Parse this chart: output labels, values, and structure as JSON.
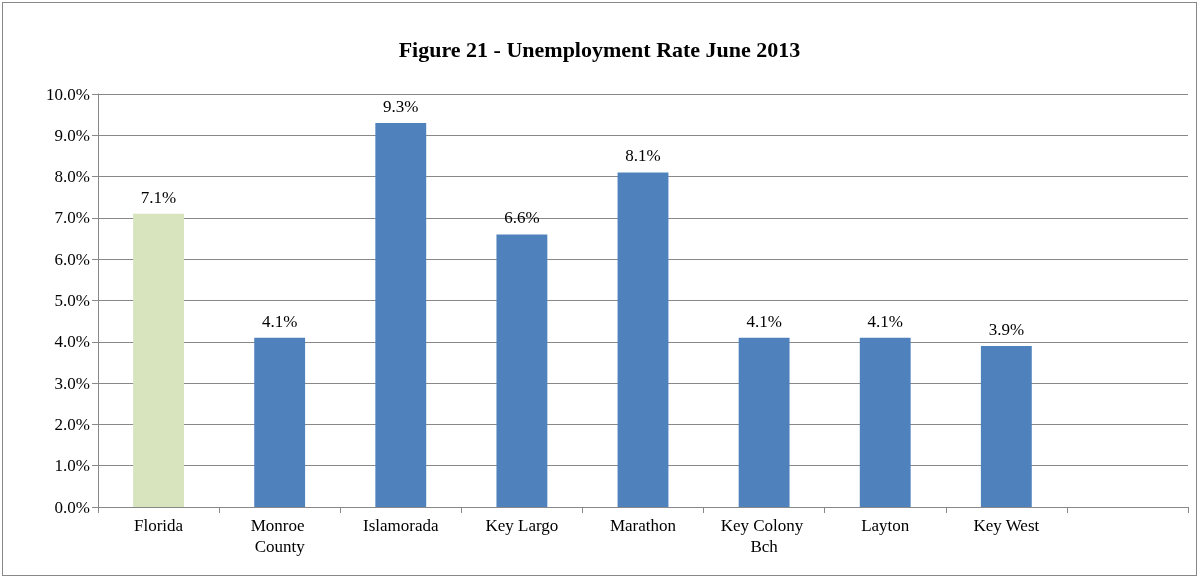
{
  "chart_data": {
    "type": "bar",
    "title": "Figure 21 - Unemployment Rate June 2013",
    "categories": [
      "Florida",
      "Monroe County",
      "Islamorada",
      "Key Largo",
      "Marathon",
      "Key Colony Bch",
      "Layton",
      "Key West",
      null
    ],
    "values": [
      7.1,
      4.1,
      9.3,
      6.6,
      8.1,
      4.1,
      4.1,
      3.9,
      null
    ],
    "colors": [
      "#d7e4bd",
      "#4f81bd",
      "#4f81bd",
      "#4f81bd",
      "#4f81bd",
      "#4f81bd",
      "#4f81bd",
      "#4f81bd",
      "#4f81bd"
    ],
    "value_labels": [
      "7.1%",
      "4.1%",
      "9.3%",
      "6.6%",
      "8.1%",
      "4.1%",
      "4.1%",
      "3.9%",
      null
    ],
    "ylim": [
      0,
      10
    ],
    "yticks": [
      {
        "value": 0,
        "label": "0.0%"
      },
      {
        "value": 1,
        "label": "1.0%"
      },
      {
        "value": 2,
        "label": "2.0%"
      },
      {
        "value": 3,
        "label": "3.0%"
      },
      {
        "value": 4,
        "label": "4.0%"
      },
      {
        "value": 5,
        "label": "5.0%"
      },
      {
        "value": 6,
        "label": "6.0%"
      },
      {
        "value": 7,
        "label": "7.0%"
      },
      {
        "value": 8,
        "label": "8.0%"
      },
      {
        "value": 9,
        "label": "9.0%"
      },
      {
        "value": 10,
        "label": "10.0%"
      }
    ],
    "grid": "y"
  }
}
